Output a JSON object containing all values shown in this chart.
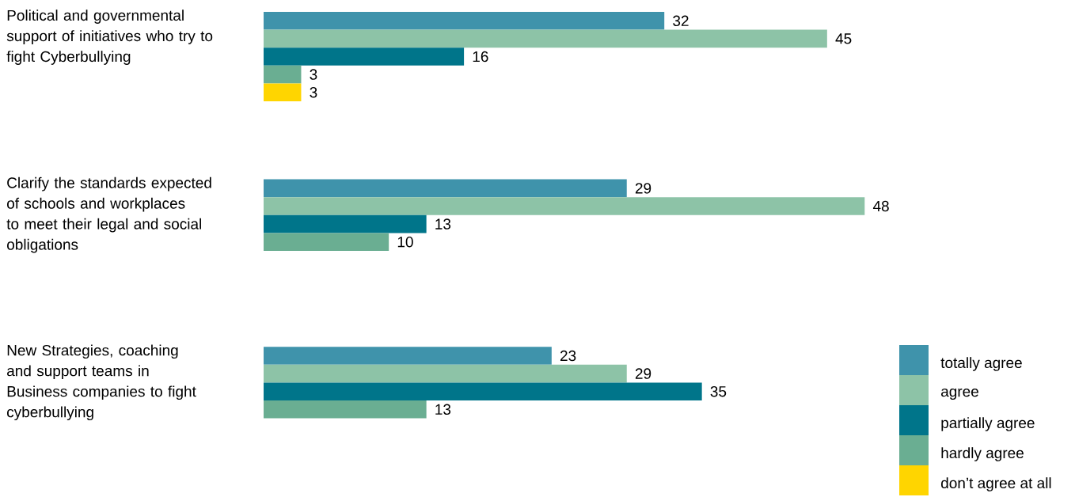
{
  "chart_data": {
    "type": "bar",
    "orientation": "horizontal",
    "data_labels": true,
    "legend": "bottom right",
    "categories": [
      "Political and governmental support of initiatives who try to fight Cyberbullying",
      "Clarify the standards expected of schools and workplaces to meet their legal and social obligations",
      "New Strategies, coaching and support teams in Business companies to fight cyberbullying"
    ],
    "series": [
      {
        "name": "totally agree",
        "color": "#3f93ab",
        "values": [
          32,
          29,
          23
        ]
      },
      {
        "name": "agree",
        "color": "#8dc3a7",
        "values": [
          45,
          48,
          29
        ]
      },
      {
        "name": "partially agree",
        "color": "#00758a",
        "values": [
          16,
          13,
          35
        ]
      },
      {
        "name": "hardly agree",
        "color": "#6aae92",
        "values": [
          3,
          10,
          13
        ]
      },
      {
        "name": "don’t agree at all",
        "color": "#ffd500",
        "values": [
          3,
          null,
          null
        ]
      }
    ]
  }
}
